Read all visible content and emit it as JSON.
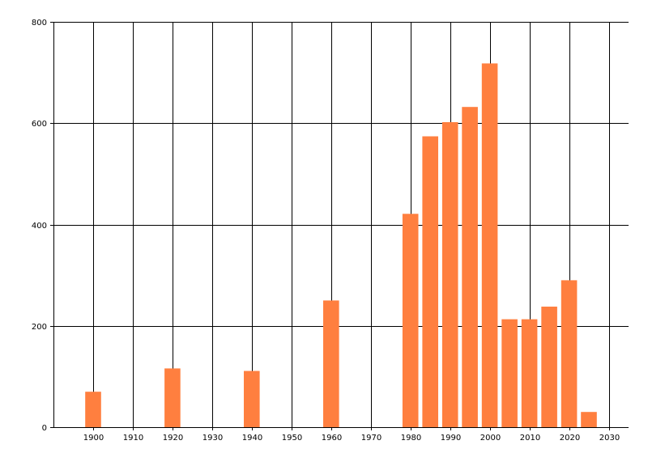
{
  "chart_data": {
    "type": "bar",
    "x": [
      1900,
      1920,
      1940,
      1960,
      1980,
      1985,
      1990,
      1995,
      2000,
      2005,
      2010,
      2015,
      2020,
      2025
    ],
    "values": [
      70,
      116,
      111,
      250,
      421,
      574,
      602,
      632,
      718,
      213,
      213,
      238,
      290,
      30
    ],
    "xlim": [
      1890,
      2035
    ],
    "ylim": [
      0,
      800
    ],
    "xticks": [
      1900,
      1910,
      1920,
      1930,
      1940,
      1950,
      1960,
      1970,
      1980,
      1990,
      2000,
      2010,
      2020,
      2030
    ],
    "yticks": [
      0,
      200,
      400,
      600,
      800
    ],
    "bar_width_years": 4,
    "grid": true,
    "colors": {
      "bar": "#ff7f3f",
      "grid": "#000000",
      "background": "#ffffff"
    }
  }
}
